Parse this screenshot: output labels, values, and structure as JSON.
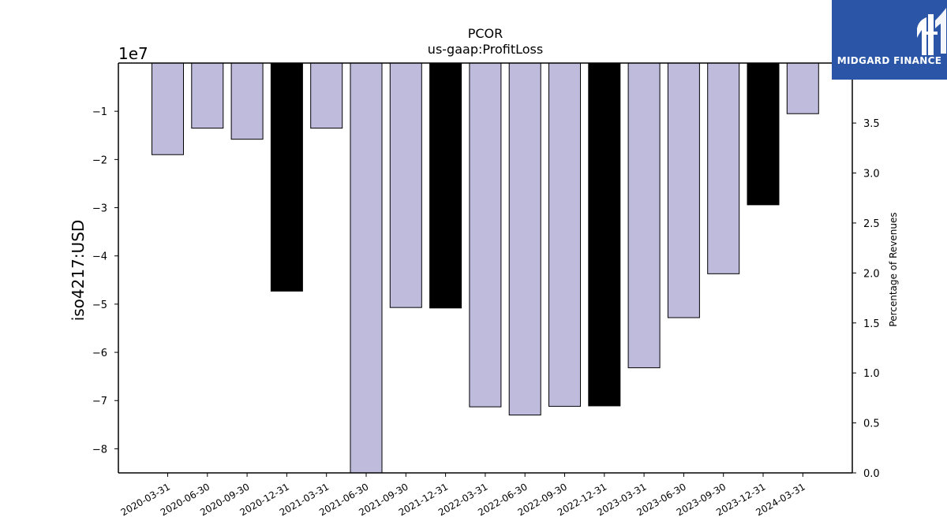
{
  "chart_data": {
    "type": "bar",
    "title": "PCOR",
    "subtitle": "us-gaap:ProfitLoss",
    "ylabel": "iso4217:USD",
    "y2label": "Percentage of Revenues",
    "y_offset_label": "1e7",
    "categories": [
      "2020-03-31",
      "2020-06-30",
      "2020-09-30",
      "2020-12-31",
      "2021-03-31",
      "2021-06-30",
      "2021-09-30",
      "2021-12-31",
      "2022-03-31",
      "2022-06-30",
      "2022-09-30",
      "2022-12-31",
      "2023-03-31",
      "2023-06-30",
      "2023-09-30",
      "2023-12-31",
      "2024-03-31"
    ],
    "values": [
      -19000000,
      -13500000,
      -15800000,
      -47300000,
      -13500000,
      -86000000,
      -50700000,
      -50800000,
      -71300000,
      -73000000,
      -71200000,
      -71100000,
      -63200000,
      -52800000,
      -43700000,
      -29400000,
      -10500000
    ],
    "annual": [
      false,
      false,
      false,
      true,
      false,
      false,
      false,
      true,
      false,
      false,
      false,
      true,
      false,
      false,
      false,
      true,
      false
    ],
    "ylim": [
      -85000000,
      0
    ],
    "yticks": [
      -10000000,
      -20000000,
      -30000000,
      -40000000,
      -50000000,
      -60000000,
      -70000000,
      -80000000
    ],
    "ytick_labels": [
      "−1",
      "−2",
      "−3",
      "−4",
      "−5",
      "−6",
      "−7",
      "−8"
    ],
    "y2lim": [
      0,
      4.1
    ],
    "y2ticks": [
      0.0,
      0.5,
      1.0,
      1.5,
      2.0,
      2.5,
      3.0,
      3.5
    ],
    "y2tick_labels": [
      "0.0",
      "0.5",
      "1.0",
      "1.5",
      "2.0",
      "2.5",
      "3.0",
      "3.5"
    ],
    "colors": {
      "quarter": "#bebbdc",
      "annual": "#000000",
      "edge": "#000000"
    },
    "grid": false
  },
  "logo": {
    "name": "MIDGARD FINANCE",
    "icon": "midgard-logo-icon"
  }
}
